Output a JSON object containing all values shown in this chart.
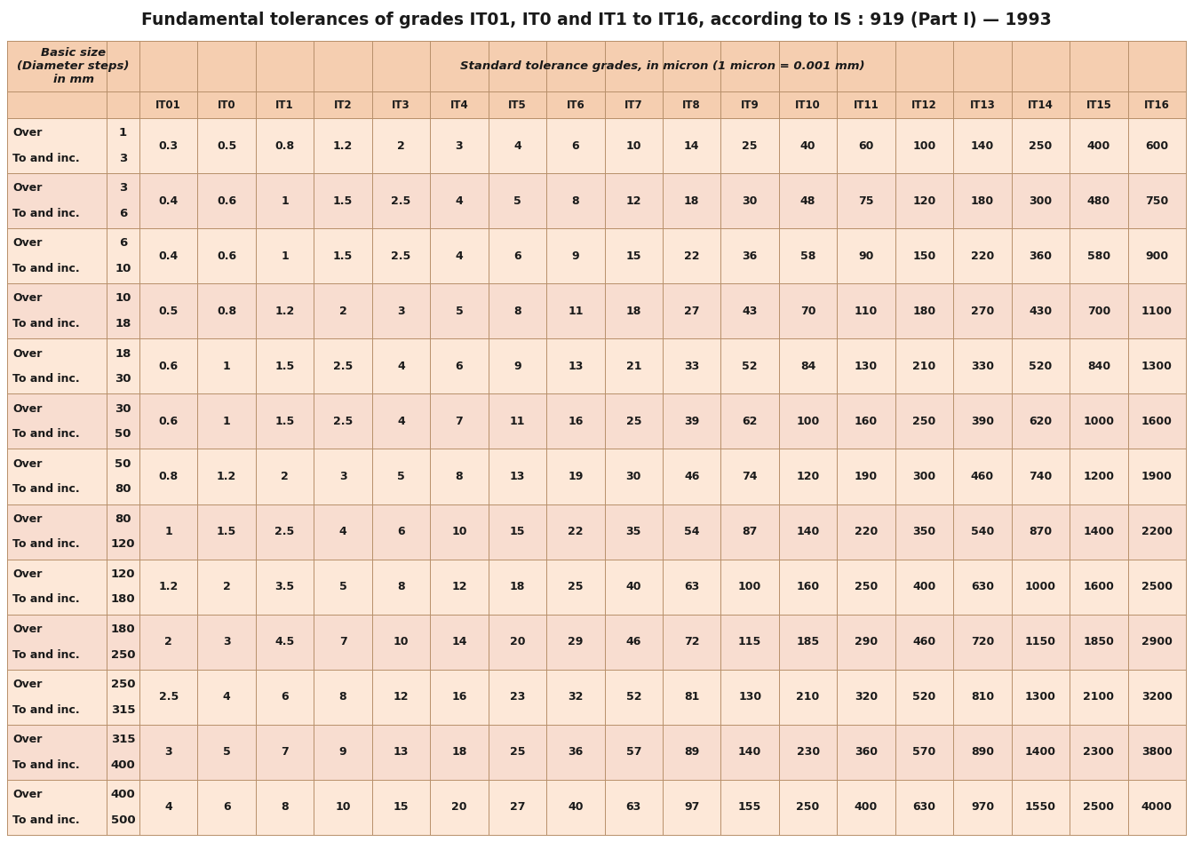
{
  "title": "Fundamental tolerances of grades IT01, IT0 and IT1 to IT16, according to IS : 919 (Part I) — 1993",
  "subtitle": "Standard tolerance grades, in micron (1 micron = 0.001 mm)",
  "header1_label": "Basic size\n(Diameter steps)\nin mm",
  "col1_header": [
    "IT01",
    "IT0",
    "IT1",
    "IT2",
    "IT3",
    "IT4",
    "IT5",
    "IT6",
    "IT7",
    "IT8",
    "IT9",
    "IT10",
    "IT11",
    "IT12",
    "IT13",
    "IT14",
    "IT15",
    "IT16"
  ],
  "size_labels": [
    [
      "Over",
      "To and inc.",
      "1",
      "3"
    ],
    [
      "Over",
      "To and inc.",
      "3",
      "6"
    ],
    [
      "Over",
      "To and inc.",
      "6",
      "10"
    ],
    [
      "Over",
      "To and inc.",
      "10",
      "18"
    ],
    [
      "Over",
      "To and inc.",
      "18",
      "30"
    ],
    [
      "Over",
      "To and inc.",
      "30",
      "50"
    ],
    [
      "Over",
      "To and inc.",
      "50",
      "80"
    ],
    [
      "Over",
      "To and inc.",
      "80",
      "120"
    ],
    [
      "Over",
      "To and inc.",
      "120",
      "180"
    ],
    [
      "Over",
      "To and inc.",
      "180",
      "250"
    ],
    [
      "Over",
      "To and inc.",
      "250",
      "315"
    ],
    [
      "Over",
      "To and inc.",
      "315",
      "400"
    ],
    [
      "Over",
      "To and inc.",
      "400",
      "500"
    ]
  ],
  "values": [
    [
      "0.3",
      "0.5",
      "0.8",
      "1.2",
      "2",
      "3",
      "4",
      "6",
      "10",
      "14",
      "25",
      "40",
      "60",
      "100",
      "140",
      "250",
      "400",
      "600"
    ],
    [
      "0.4",
      "0.6",
      "1",
      "1.5",
      "2.5",
      "4",
      "5",
      "8",
      "12",
      "18",
      "30",
      "48",
      "75",
      "120",
      "180",
      "300",
      "480",
      "750"
    ],
    [
      "0.4",
      "0.6",
      "1",
      "1.5",
      "2.5",
      "4",
      "6",
      "9",
      "15",
      "22",
      "36",
      "58",
      "90",
      "150",
      "220",
      "360",
      "580",
      "900"
    ],
    [
      "0.5",
      "0.8",
      "1.2",
      "2",
      "3",
      "5",
      "8",
      "11",
      "18",
      "27",
      "43",
      "70",
      "110",
      "180",
      "270",
      "430",
      "700",
      "1100"
    ],
    [
      "0.6",
      "1",
      "1.5",
      "2.5",
      "4",
      "6",
      "9",
      "13",
      "21",
      "33",
      "52",
      "84",
      "130",
      "210",
      "330",
      "520",
      "840",
      "1300"
    ],
    [
      "0.6",
      "1",
      "1.5",
      "2.5",
      "4",
      "7",
      "11",
      "16",
      "25",
      "39",
      "62",
      "100",
      "160",
      "250",
      "390",
      "620",
      "1000",
      "1600"
    ],
    [
      "0.8",
      "1.2",
      "2",
      "3",
      "5",
      "8",
      "13",
      "19",
      "30",
      "46",
      "74",
      "120",
      "190",
      "300",
      "460",
      "740",
      "1200",
      "1900"
    ],
    [
      "1",
      "1.5",
      "2.5",
      "4",
      "6",
      "10",
      "15",
      "22",
      "35",
      "54",
      "87",
      "140",
      "220",
      "350",
      "540",
      "870",
      "1400",
      "2200"
    ],
    [
      "1.2",
      "2",
      "3.5",
      "5",
      "8",
      "12",
      "18",
      "25",
      "40",
      "63",
      "100",
      "160",
      "250",
      "400",
      "630",
      "1000",
      "1600",
      "2500"
    ],
    [
      "2",
      "3",
      "4.5",
      "7",
      "10",
      "14",
      "20",
      "29",
      "46",
      "72",
      "115",
      "185",
      "290",
      "460",
      "720",
      "1150",
      "1850",
      "2900"
    ],
    [
      "2.5",
      "4",
      "6",
      "8",
      "12",
      "16",
      "23",
      "32",
      "52",
      "81",
      "130",
      "210",
      "320",
      "520",
      "810",
      "1300",
      "2100",
      "3200"
    ],
    [
      "3",
      "5",
      "7",
      "9",
      "13",
      "18",
      "25",
      "36",
      "57",
      "89",
      "140",
      "230",
      "360",
      "570",
      "890",
      "1400",
      "2300",
      "3800"
    ],
    [
      "4",
      "6",
      "8",
      "10",
      "15",
      "20",
      "27",
      "40",
      "63",
      "97",
      "155",
      "250",
      "400",
      "630",
      "970",
      "1550",
      "2500",
      "4000"
    ]
  ],
  "bg_color": "#FDE8D8",
  "header_bg": "#F5CEB0",
  "alt_row_bg": "#F8DDD0",
  "border_color": "#B8906A",
  "title_color": "#1A1A1A",
  "text_color": "#1A1A1A",
  "header_text_color": "#1A1A1A",
  "fig_width": 13.43,
  "fig_height": 9.48,
  "dpi": 100
}
